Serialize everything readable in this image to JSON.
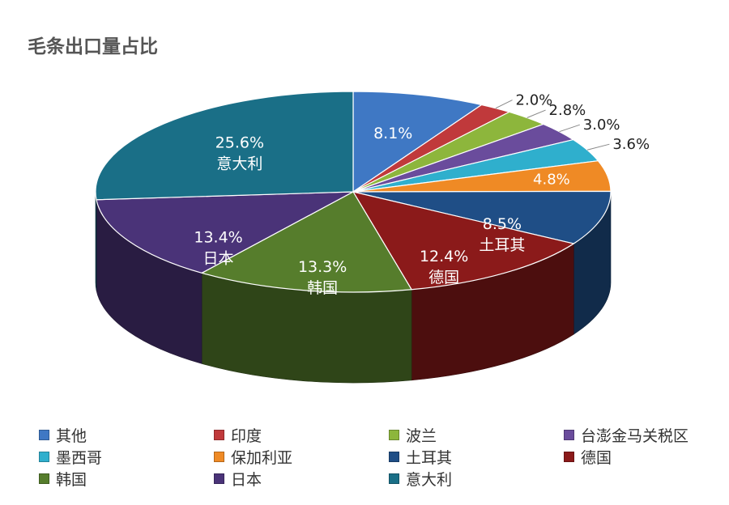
{
  "title": "毛条出口量占比",
  "chart_data": {
    "type": "pie",
    "title": "毛条出口量占比",
    "legend_placement": "bottom",
    "series": [
      {
        "name": "其他",
        "value": 8.1,
        "label": "8.1%",
        "color": "#3F78C4"
      },
      {
        "name": "印度",
        "value": 2.0,
        "label": "2.0%",
        "color": "#C0393B"
      },
      {
        "name": "波兰",
        "value": 2.8,
        "label": "2.8%",
        "color": "#8DB63C"
      },
      {
        "name": "台澎金马关税区",
        "value": 3.0,
        "label": "3.0%",
        "color": "#6A4C9C"
      },
      {
        "name": "墨西哥",
        "value": 3.6,
        "label": "3.6%",
        "color": "#2FAFCD"
      },
      {
        "name": "保加利亚",
        "value": 4.8,
        "label": "4.8%",
        "color": "#EF8A25"
      },
      {
        "name": "土耳其",
        "value": 8.5,
        "label": "8.5%",
        "color": "#1F4E86"
      },
      {
        "name": "德国",
        "value": 12.4,
        "label": "12.4%",
        "color": "#8B1A1A"
      },
      {
        "name": "韩国",
        "value": 13.3,
        "label": "13.3%",
        "color": "#567D2C"
      },
      {
        "name": "日本",
        "value": 13.4,
        "label": "13.4%",
        "color": "#4A3378"
      },
      {
        "name": "意大利",
        "value": 25.6,
        "label": "25.6%",
        "color": "#1A6F87"
      }
    ]
  }
}
